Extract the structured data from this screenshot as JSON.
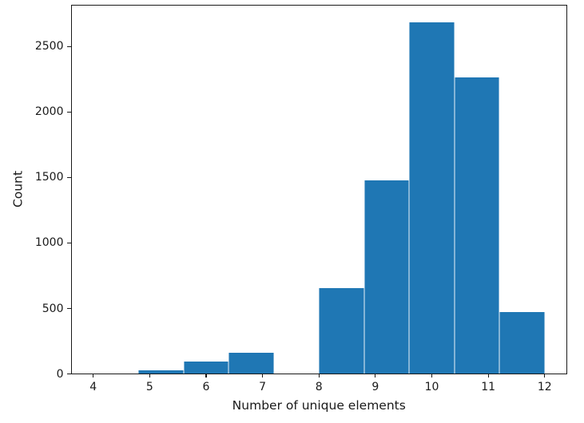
{
  "chart_data": {
    "type": "bar",
    "chart_kind": "histogram",
    "xlabel": "Number of unique elements",
    "ylabel": "Count",
    "bin_edges": [
      4.0,
      4.8,
      5.6,
      6.4,
      7.2,
      8.0,
      8.8,
      9.6,
      10.4,
      11.2,
      12.0
    ],
    "counts": [
      0,
      30,
      95,
      160,
      0,
      655,
      1480,
      2685,
      2265,
      475
    ],
    "x_ticks": [
      4,
      5,
      6,
      7,
      8,
      9,
      10,
      11,
      12
    ],
    "y_ticks": [
      0,
      500,
      1000,
      1500,
      2000,
      2500
    ],
    "xlim": [
      3.6,
      12.4
    ],
    "ylim": [
      0,
      2820
    ],
    "grid": false,
    "legend_position": "none",
    "bar_color": "#1f77b4",
    "axis_color": "#1a1a1a",
    "background_color": "#ffffff"
  }
}
